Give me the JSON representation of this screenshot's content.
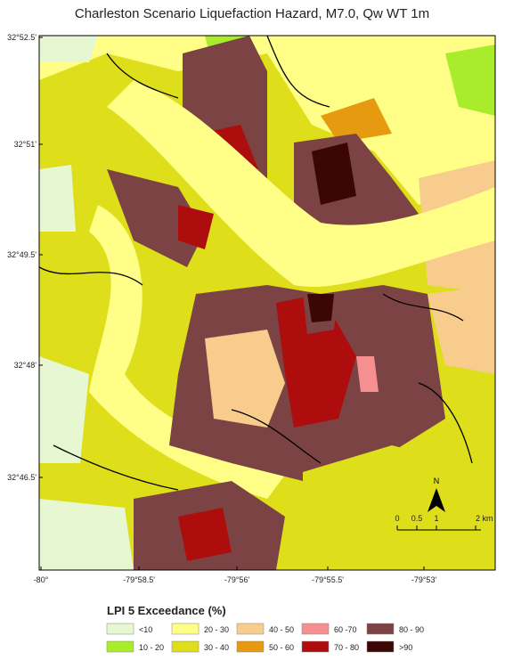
{
  "title": "Charleston Scenario Liquefaction Hazard, M7.0, Qw WT 1m",
  "map": {
    "lat_labels": [
      "32°52.5'",
      "32°51'",
      "32°49.5'",
      "32°48'",
      "32°46.5'"
    ],
    "lon_labels": [
      "-80°",
      "-79°58.5'",
      "-79°56'",
      "-79°55.5'",
      "-79°53'"
    ],
    "north": "N",
    "scale_labels": [
      "0",
      "0.5",
      "1",
      "2 km"
    ]
  },
  "legend": {
    "title": "LPI 5 Exceedance (%)",
    "items": [
      {
        "label": "<10",
        "color": "#e6f7d2"
      },
      {
        "label": "10 - 20",
        "color": "#a8ec2c"
      },
      {
        "label": "20 - 30",
        "color": "#ffff88"
      },
      {
        "label": "30 - 40",
        "color": "#dede1a"
      },
      {
        "label": "40 - 50",
        "color": "#f8cc8c"
      },
      {
        "label": "50 - 60",
        "color": "#e69a10"
      },
      {
        "label": "60 -70",
        "color": "#f69090"
      },
      {
        "label": "70 - 80",
        "color": "#ad0d0d"
      },
      {
        "label": "80 - 90",
        "color": "#7b4343"
      },
      {
        "label": ">90",
        "color": "#3a0606"
      }
    ]
  }
}
